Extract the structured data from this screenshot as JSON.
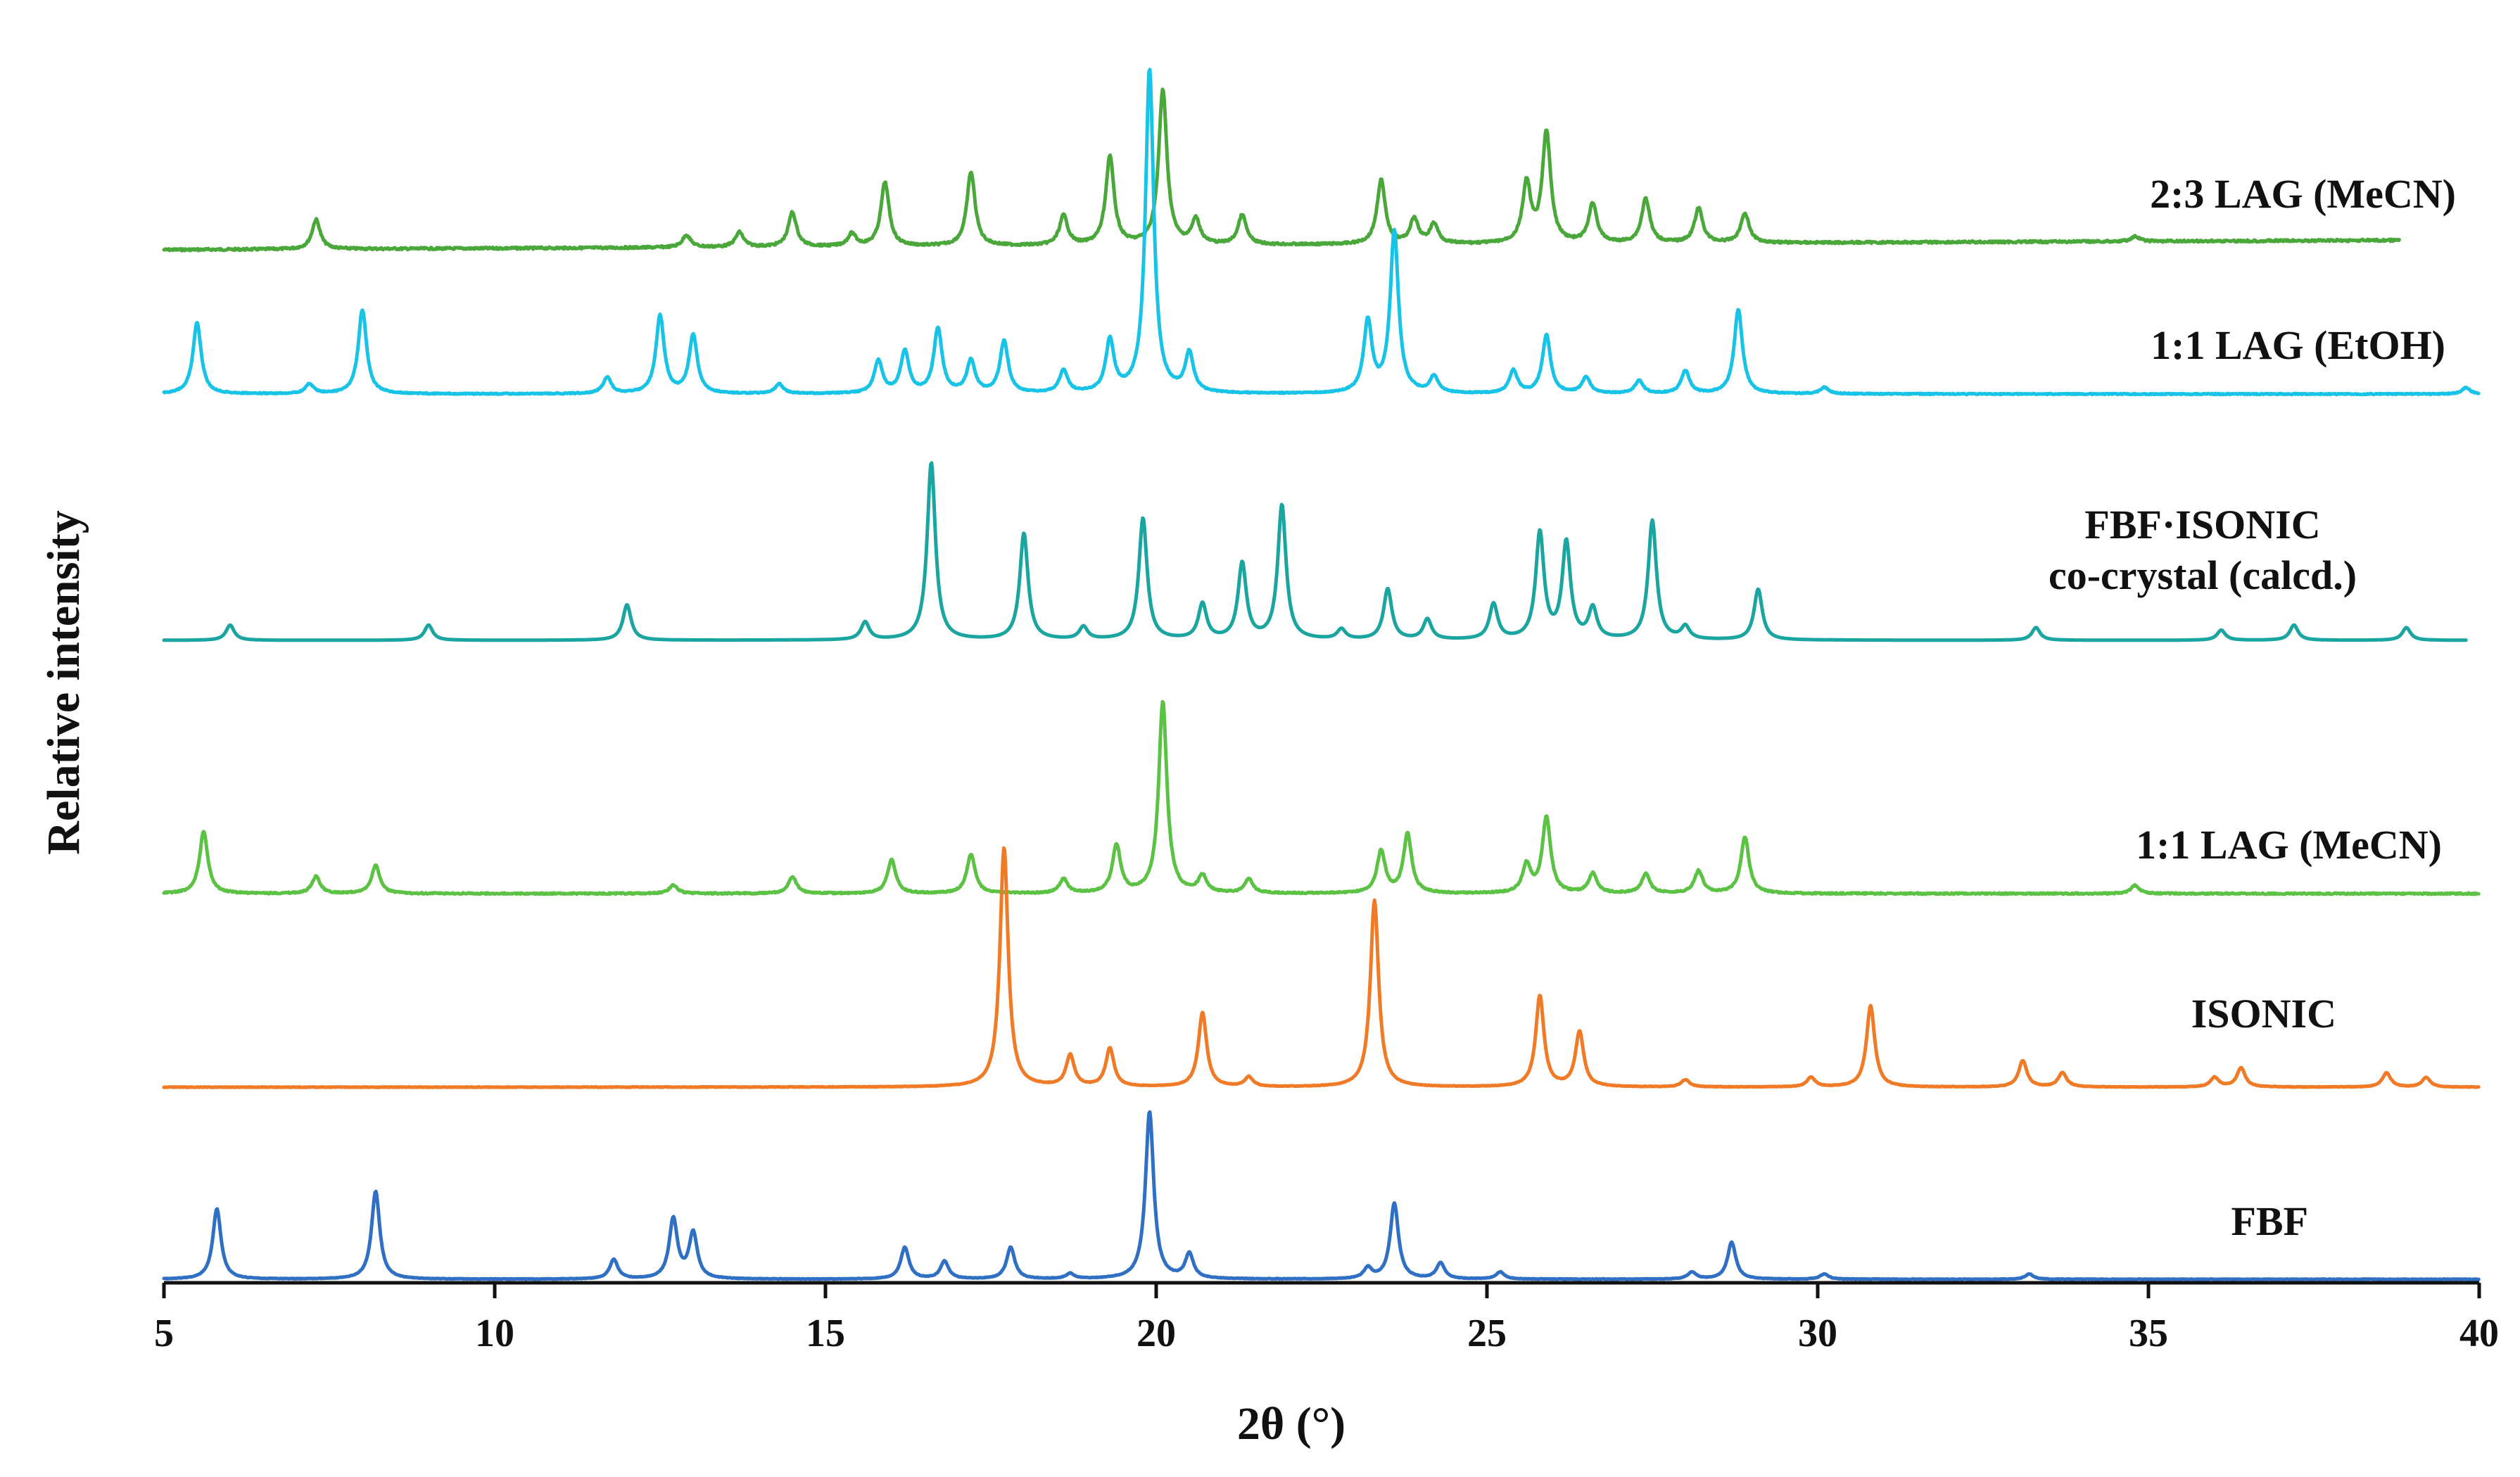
{
  "chart_data": {
    "type": "line",
    "xlabel": "2θ (°)",
    "ylabel": "Relative intensity",
    "xlim": [
      5,
      40
    ],
    "xticks": [
      5,
      10,
      15,
      20,
      25,
      30,
      35,
      40
    ],
    "y_units": "arbitrary (stacked patterns)",
    "grid": false,
    "legend": "labels placed beside each trace",
    "series": [
      {
        "name": "2:3 LAG (MeCN)",
        "color": "#4aa83a",
        "peaks": [
          [
            7.3,
            0.12
          ],
          [
            12.9,
            0.05
          ],
          [
            13.7,
            0.06
          ],
          [
            14.5,
            0.14
          ],
          [
            15.4,
            0.05
          ],
          [
            15.9,
            0.26
          ],
          [
            17.2,
            0.3
          ],
          [
            18.6,
            0.12
          ],
          [
            19.3,
            0.36
          ],
          [
            20.1,
            0.63
          ],
          [
            20.6,
            0.1
          ],
          [
            21.3,
            0.12
          ],
          [
            23.4,
            0.26
          ],
          [
            23.9,
            0.1
          ],
          [
            24.2,
            0.08
          ],
          [
            25.6,
            0.24
          ],
          [
            25.9,
            0.45
          ],
          [
            26.6,
            0.16
          ],
          [
            27.4,
            0.18
          ],
          [
            28.2,
            0.14
          ],
          [
            28.9,
            0.12
          ],
          [
            34.8,
            0.02
          ]
        ]
      },
      {
        "name": "1:1 LAG (EtOH)",
        "color": "#17c3e6",
        "peaks": [
          [
            5.5,
            0.22
          ],
          [
            7.2,
            0.03
          ],
          [
            8.0,
            0.26
          ],
          [
            11.7,
            0.05
          ],
          [
            12.5,
            0.24
          ],
          [
            13.0,
            0.18
          ],
          [
            14.3,
            0.03
          ],
          [
            15.8,
            0.1
          ],
          [
            16.2,
            0.13
          ],
          [
            16.7,
            0.2
          ],
          [
            17.2,
            0.1
          ],
          [
            17.7,
            0.16
          ],
          [
            18.6,
            0.07
          ],
          [
            19.3,
            0.16
          ],
          [
            19.9,
            1.0
          ],
          [
            20.5,
            0.12
          ],
          [
            23.2,
            0.22
          ],
          [
            23.6,
            0.5
          ],
          [
            24.2,
            0.05
          ],
          [
            25.4,
            0.07
          ],
          [
            25.9,
            0.18
          ],
          [
            26.5,
            0.05
          ],
          [
            27.3,
            0.04
          ],
          [
            28.0,
            0.07
          ],
          [
            28.8,
            0.26
          ],
          [
            30.1,
            0.02
          ],
          [
            39.8,
            0.02
          ]
        ]
      },
      {
        "name": "FBF·ISONIC co-crystal (calcd.)",
        "color": "#1aa5a0",
        "peaks": [
          [
            6.0,
            0.06
          ],
          [
            9.0,
            0.06
          ],
          [
            12.0,
            0.14
          ],
          [
            15.6,
            0.07
          ],
          [
            16.6,
            0.7
          ],
          [
            18.0,
            0.42
          ],
          [
            18.9,
            0.05
          ],
          [
            19.8,
            0.48
          ],
          [
            20.7,
            0.14
          ],
          [
            21.3,
            0.3
          ],
          [
            21.9,
            0.53
          ],
          [
            22.8,
            0.04
          ],
          [
            23.5,
            0.2
          ],
          [
            24.1,
            0.08
          ],
          [
            25.1,
            0.14
          ],
          [
            25.8,
            0.42
          ],
          [
            26.2,
            0.38
          ],
          [
            26.6,
            0.12
          ],
          [
            27.5,
            0.47
          ],
          [
            28.0,
            0.05
          ],
          [
            29.1,
            0.2
          ],
          [
            33.3,
            0.05
          ],
          [
            36.1,
            0.04
          ],
          [
            37.2,
            0.06
          ],
          [
            38.9,
            0.05
          ]
        ]
      },
      {
        "name": "1:1 LAG (MeCN)",
        "color": "#5bc244",
        "peaks": [
          [
            5.6,
            0.22
          ],
          [
            7.3,
            0.06
          ],
          [
            8.2,
            0.1
          ],
          [
            12.7,
            0.03
          ],
          [
            14.5,
            0.06
          ],
          [
            16.0,
            0.12
          ],
          [
            17.2,
            0.14
          ],
          [
            18.6,
            0.05
          ],
          [
            19.4,
            0.17
          ],
          [
            20.1,
            0.68
          ],
          [
            20.7,
            0.06
          ],
          [
            21.4,
            0.05
          ],
          [
            23.4,
            0.15
          ],
          [
            23.8,
            0.21
          ],
          [
            25.6,
            0.1
          ],
          [
            25.9,
            0.27
          ],
          [
            26.6,
            0.07
          ],
          [
            27.4,
            0.07
          ],
          [
            28.2,
            0.08
          ],
          [
            28.9,
            0.2
          ],
          [
            34.8,
            0.03
          ]
        ]
      },
      {
        "name": "ISONIC",
        "color": "#f07a26",
        "peaks": [
          [
            17.7,
            1.0
          ],
          [
            18.7,
            0.13
          ],
          [
            19.3,
            0.16
          ],
          [
            20.7,
            0.31
          ],
          [
            21.4,
            0.04
          ],
          [
            23.3,
            0.78
          ],
          [
            25.8,
            0.38
          ],
          [
            26.4,
            0.23
          ],
          [
            28.0,
            0.03
          ],
          [
            29.9,
            0.04
          ],
          [
            30.8,
            0.34
          ],
          [
            33.1,
            0.11
          ],
          [
            33.7,
            0.06
          ],
          [
            36.0,
            0.04
          ],
          [
            36.4,
            0.08
          ],
          [
            38.6,
            0.06
          ],
          [
            39.2,
            0.04
          ]
        ]
      },
      {
        "name": "FBF",
        "color": "#2f6fc4",
        "peaks": [
          [
            5.8,
            0.4
          ],
          [
            8.2,
            0.5
          ],
          [
            11.8,
            0.11
          ],
          [
            12.7,
            0.34
          ],
          [
            13.0,
            0.26
          ],
          [
            16.2,
            0.18
          ],
          [
            16.8,
            0.1
          ],
          [
            17.8,
            0.18
          ],
          [
            18.7,
            0.03
          ],
          [
            19.9,
            0.95
          ],
          [
            20.5,
            0.14
          ],
          [
            23.2,
            0.06
          ],
          [
            23.6,
            0.43
          ],
          [
            24.3,
            0.09
          ],
          [
            25.2,
            0.04
          ],
          [
            28.1,
            0.04
          ],
          [
            28.7,
            0.21
          ],
          [
            30.1,
            0.03
          ],
          [
            33.2,
            0.03
          ]
        ]
      }
    ]
  }
}
